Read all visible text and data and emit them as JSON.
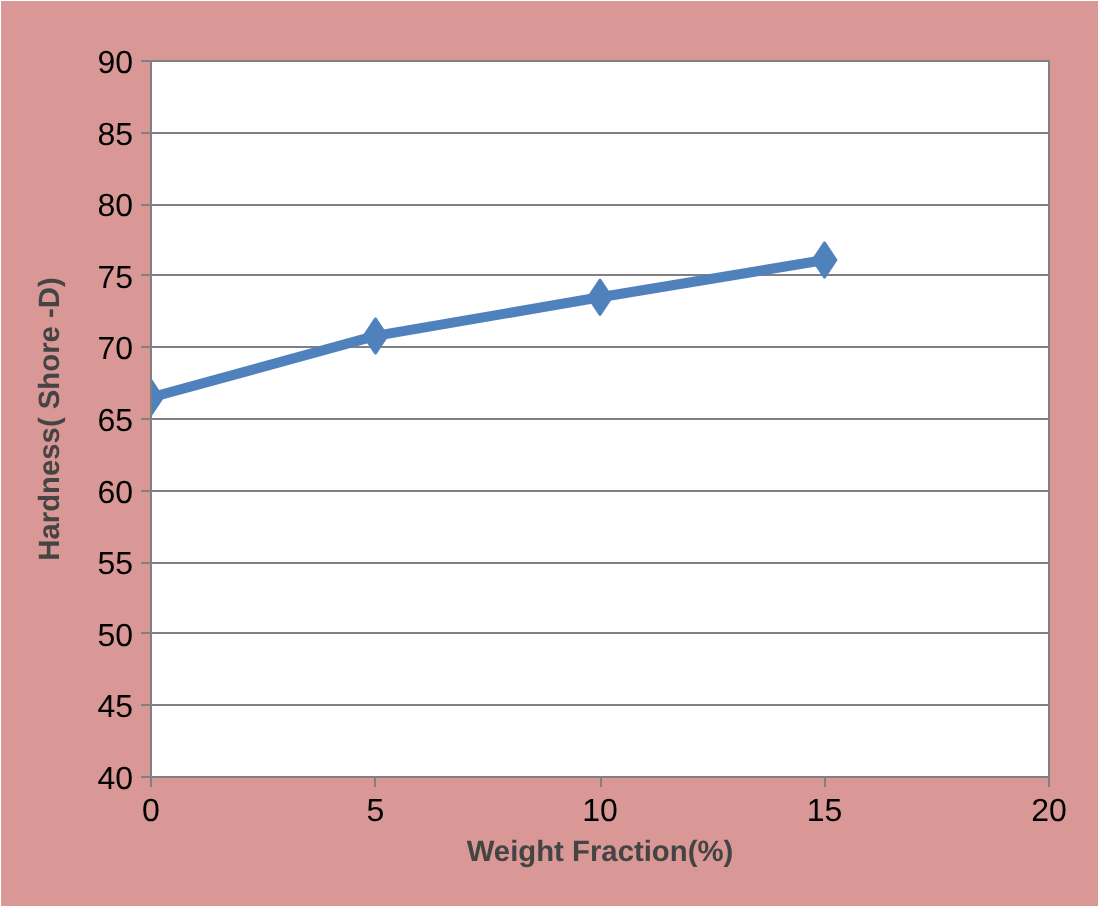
{
  "chart_data": {
    "type": "line",
    "xlabel": "Weight Fraction(%)",
    "ylabel": "Hardness( Shore -D)",
    "x": [
      0,
      5,
      10,
      15
    ],
    "series": [
      {
        "color": "#4f81bd",
        "values": [
          66.5,
          70.8,
          73.5,
          76.1
        ]
      }
    ],
    "xlim": [
      0,
      20
    ],
    "xticks": [
      0,
      5,
      10,
      15,
      20
    ],
    "ylim": [
      40,
      90
    ],
    "yticks": [
      40,
      45,
      50,
      55,
      60,
      65,
      70,
      75,
      80,
      85,
      90
    ],
    "grid": "y",
    "marker": "diamond",
    "line_style": "solid"
  }
}
